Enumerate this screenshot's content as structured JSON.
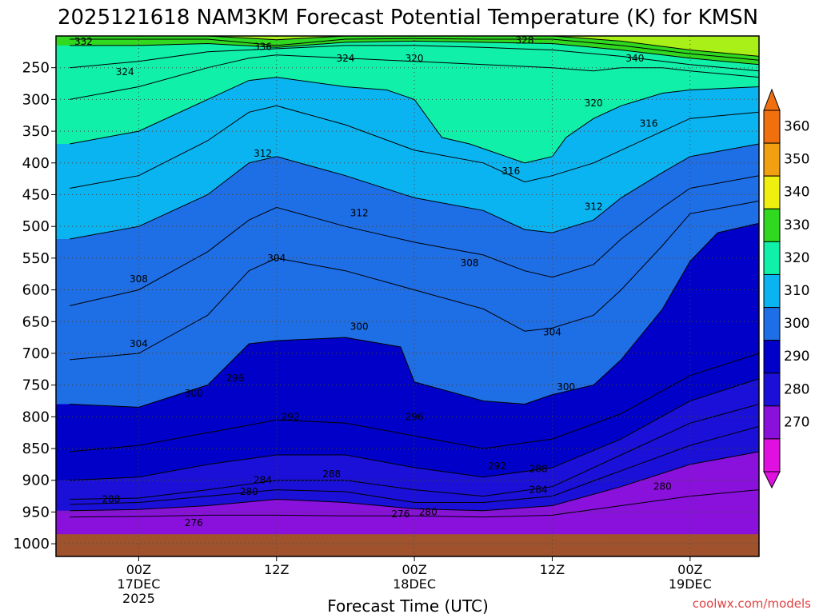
{
  "chart_data": {
    "type": "heatmap",
    "title": "2025121618 NAM3KM Forecast Potential Temperature (K) for KMSN",
    "xlabel": "Forecast Time (UTC)",
    "ylabel": "",
    "y_ticks": [
      250,
      300,
      350,
      400,
      450,
      500,
      550,
      600,
      650,
      700,
      750,
      800,
      850,
      900,
      950,
      1000
    ],
    "ylim": [
      200,
      1020
    ],
    "x_range_hours": [
      -6,
      45
    ],
    "x_ticks": [
      {
        "hour": 0,
        "label": "00Z",
        "label2": "17DEC",
        "label3": "2025"
      },
      {
        "hour": 10,
        "label": "12Z",
        "label2": "",
        "label3": ""
      },
      {
        "hour": 20,
        "label": "00Z",
        "label2": "18DEC",
        "label3": ""
      },
      {
        "hour": 30,
        "label": "12Z",
        "label2": "",
        "label3": ""
      },
      {
        "hour": 40,
        "label": "00Z",
        "label2": "19DEC",
        "label3": ""
      }
    ],
    "colorbar": {
      "levels": [
        270,
        280,
        290,
        300,
        310,
        320,
        330,
        340,
        350,
        360
      ],
      "colors": [
        "#e010e0",
        "#8a10dc",
        "#1a10d8",
        "#0000c8",
        "#1e6ee6",
        "#0ab4f0",
        "#10f0a8",
        "#30d820",
        "#a8f018",
        "#f0f010",
        "#f0a010",
        "#f07010"
      ],
      "labels": [
        "270",
        "280",
        "290",
        "300",
        "310",
        "320",
        "330",
        "340",
        "350",
        "360"
      ]
    },
    "contours": [
      {
        "value": 276,
        "label": "276",
        "points": [
          [
            -5,
            958
          ],
          [
            0,
            957
          ],
          [
            5,
            955
          ],
          [
            10,
            955
          ],
          [
            15,
            956
          ],
          [
            20,
            956
          ],
          [
            25,
            958
          ],
          [
            30,
            955
          ],
          [
            35,
            940
          ],
          [
            40,
            925
          ],
          [
            45,
            915
          ]
        ]
      },
      {
        "value": 280,
        "label": "280",
        "points": [
          [
            -5,
            948
          ],
          [
            0,
            946
          ],
          [
            5,
            940
          ],
          [
            10,
            930
          ],
          [
            15,
            935
          ],
          [
            20,
            945
          ],
          [
            25,
            948
          ],
          [
            30,
            940
          ],
          [
            35,
            910
          ],
          [
            40,
            875
          ],
          [
            45,
            855
          ]
        ]
      },
      {
        "value": 284,
        "label": "284",
        "points": [
          [
            -5,
            938
          ],
          [
            0,
            935
          ],
          [
            5,
            925
          ],
          [
            10,
            915
          ],
          [
            15,
            918
          ],
          [
            20,
            935
          ],
          [
            25,
            935
          ],
          [
            30,
            925
          ],
          [
            35,
            885
          ],
          [
            40,
            845
          ],
          [
            45,
            815
          ]
        ]
      },
      {
        "value": 288,
        "label": "288",
        "points": [
          [
            -5,
            930
          ],
          [
            0,
            928
          ],
          [
            5,
            915
          ],
          [
            10,
            900
          ],
          [
            15,
            900
          ],
          [
            20,
            915
          ],
          [
            25,
            925
          ],
          [
            30,
            910
          ],
          [
            35,
            860
          ],
          [
            40,
            810
          ],
          [
            45,
            780
          ]
        ]
      },
      {
        "value": 292,
        "label": "292",
        "points": [
          [
            -5,
            900
          ],
          [
            0,
            895
          ],
          [
            5,
            875
          ],
          [
            10,
            860
          ],
          [
            15,
            860
          ],
          [
            20,
            880
          ],
          [
            25,
            895
          ],
          [
            30,
            880
          ],
          [
            35,
            835
          ],
          [
            40,
            775
          ],
          [
            45,
            740
          ]
        ]
      },
      {
        "value": 296,
        "label": "296",
        "points": [
          [
            -5,
            855
          ],
          [
            0,
            845
          ],
          [
            5,
            825
          ],
          [
            10,
            805
          ],
          [
            15,
            810
          ],
          [
            20,
            830
          ],
          [
            25,
            850
          ],
          [
            30,
            835
          ],
          [
            35,
            795
          ],
          [
            40,
            735
          ],
          [
            45,
            700
          ]
        ]
      },
      {
        "value": 300,
        "label": "300",
        "points": [
          [
            -5,
            780
          ],
          [
            0,
            785
          ],
          [
            5,
            750
          ],
          [
            8,
            685
          ],
          [
            10,
            680
          ],
          [
            15,
            675
          ],
          [
            19,
            690
          ],
          [
            20,
            745
          ],
          [
            25,
            775
          ],
          [
            28,
            780
          ],
          [
            30,
            765
          ],
          [
            33,
            750
          ],
          [
            35,
            710
          ],
          [
            38,
            630
          ],
          [
            40,
            555
          ],
          [
            42,
            510
          ],
          [
            45,
            495
          ]
        ]
      },
      {
        "value": 304,
        "label": "304",
        "points": [
          [
            -5,
            710
          ],
          [
            0,
            700
          ],
          [
            5,
            640
          ],
          [
            8,
            570
          ],
          [
            10,
            550
          ],
          [
            15,
            570
          ],
          [
            20,
            600
          ],
          [
            25,
            630
          ],
          [
            28,
            665
          ],
          [
            30,
            660
          ],
          [
            33,
            640
          ],
          [
            35,
            600
          ],
          [
            38,
            530
          ],
          [
            40,
            480
          ],
          [
            45,
            460
          ]
        ]
      },
      {
        "value": 308,
        "label": "308",
        "points": [
          [
            -5,
            625
          ],
          [
            0,
            600
          ],
          [
            5,
            540
          ],
          [
            8,
            490
          ],
          [
            10,
            470
          ],
          [
            15,
            500
          ],
          [
            20,
            525
          ],
          [
            25,
            545
          ],
          [
            28,
            570
          ],
          [
            30,
            580
          ],
          [
            33,
            560
          ],
          [
            35,
            520
          ],
          [
            38,
            470
          ],
          [
            40,
            440
          ],
          [
            45,
            420
          ]
        ]
      },
      {
        "value": 312,
        "label": "312",
        "points": [
          [
            -5,
            520
          ],
          [
            0,
            500
          ],
          [
            5,
            450
          ],
          [
            8,
            400
          ],
          [
            10,
            390
          ],
          [
            15,
            420
          ],
          [
            20,
            455
          ],
          [
            25,
            475
          ],
          [
            28,
            505
          ],
          [
            30,
            510
          ],
          [
            33,
            490
          ],
          [
            35,
            455
          ],
          [
            38,
            415
          ],
          [
            40,
            390
          ],
          [
            45,
            370
          ]
        ]
      },
      {
        "value": 316,
        "label": "316",
        "points": [
          [
            -5,
            440
          ],
          [
            0,
            420
          ],
          [
            5,
            365
          ],
          [
            8,
            320
          ],
          [
            10,
            310
          ],
          [
            15,
            340
          ],
          [
            20,
            380
          ],
          [
            25,
            400
          ],
          [
            28,
            430
          ],
          [
            30,
            420
          ],
          [
            33,
            400
          ],
          [
            35,
            380
          ],
          [
            38,
            350
          ],
          [
            40,
            330
          ],
          [
            45,
            320
          ]
        ]
      },
      {
        "value": 320,
        "label": "320",
        "points": [
          [
            -5,
            370
          ],
          [
            0,
            350
          ],
          [
            5,
            300
          ],
          [
            8,
            270
          ],
          [
            10,
            265
          ],
          [
            15,
            280
          ],
          [
            18,
            285
          ],
          [
            20,
            300
          ],
          [
            22,
            360
          ],
          [
            24,
            370
          ],
          [
            26,
            385
          ],
          [
            28,
            400
          ],
          [
            30,
            390
          ],
          [
            31,
            360
          ],
          [
            33,
            330
          ],
          [
            35,
            310
          ],
          [
            38,
            290
          ],
          [
            40,
            285
          ],
          [
            45,
            280
          ]
        ]
      },
      {
        "value": 324,
        "label": "324",
        "points": [
          [
            -5,
            300
          ],
          [
            0,
            280
          ],
          [
            5,
            250
          ],
          [
            8,
            235
          ],
          [
            10,
            230
          ],
          [
            15,
            235
          ],
          [
            20,
            240
          ],
          [
            25,
            245
          ],
          [
            30,
            250
          ],
          [
            33,
            255
          ],
          [
            35,
            250
          ],
          [
            38,
            250
          ],
          [
            40,
            255
          ],
          [
            45,
            265
          ]
        ]
      },
      {
        "value": 328,
        "label": "328",
        "points": [
          [
            -5,
            250
          ],
          [
            0,
            240
          ],
          [
            5,
            225
          ],
          [
            10,
            220
          ],
          [
            15,
            215
          ],
          [
            20,
            215
          ],
          [
            25,
            218
          ],
          [
            30,
            222
          ],
          [
            35,
            232
          ],
          [
            40,
            245
          ],
          [
            45,
            255
          ]
        ]
      },
      {
        "value": 332,
        "label": "332",
        "points": [
          [
            -5,
            215
          ],
          [
            0,
            215
          ],
          [
            5,
            212
          ],
          [
            10,
            218
          ],
          [
            15,
            210
          ],
          [
            20,
            208
          ],
          [
            25,
            210
          ],
          [
            30,
            212
          ],
          [
            35,
            222
          ],
          [
            40,
            235
          ],
          [
            45,
            245
          ]
        ]
      },
      {
        "value": 336,
        "label": "336",
        "points": [
          [
            -5,
            205
          ],
          [
            0,
            205
          ],
          [
            5,
            205
          ],
          [
            10,
            215
          ],
          [
            15,
            205
          ],
          [
            20,
            204
          ],
          [
            25,
            205
          ],
          [
            30,
            205
          ],
          [
            35,
            215
          ],
          [
            40,
            228
          ],
          [
            45,
            238
          ]
        ]
      },
      {
        "value": 340,
        "label": "340",
        "points": [
          [
            -5,
            200
          ],
          [
            0,
            200
          ],
          [
            5,
            200
          ],
          [
            10,
            206
          ],
          [
            15,
            200
          ],
          [
            20,
            200
          ],
          [
            25,
            200
          ],
          [
            30,
            200
          ],
          [
            35,
            208
          ],
          [
            40,
            222
          ],
          [
            45,
            232
          ]
        ]
      }
    ],
    "contour_labels": [
      {
        "text": "332",
        "hour": -4,
        "p": 214
      },
      {
        "text": "336",
        "hour": 9,
        "p": 222
      },
      {
        "text": "328",
        "hour": 28,
        "p": 212
      },
      {
        "text": "324",
        "hour": -1,
        "p": 262
      },
      {
        "text": "324",
        "hour": 15,
        "p": 240
      },
      {
        "text": "320",
        "hour": 20,
        "p": 240
      },
      {
        "text": "340",
        "hour": 36,
        "p": 240
      },
      {
        "text": "320",
        "hour": 33,
        "p": 311
      },
      {
        "text": "316",
        "hour": 37,
        "p": 343
      },
      {
        "text": "312",
        "hour": 9,
        "p": 390
      },
      {
        "text": "316",
        "hour": 27,
        "p": 418
      },
      {
        "text": "312",
        "hour": 16,
        "p": 484
      },
      {
        "text": "312",
        "hour": 33,
        "p": 474
      },
      {
        "text": "308",
        "hour": 0,
        "p": 588
      },
      {
        "text": "304",
        "hour": 10,
        "p": 555
      },
      {
        "text": "308",
        "hour": 24,
        "p": 563
      },
      {
        "text": "304",
        "hour": 0,
        "p": 690
      },
      {
        "text": "300",
        "hour": 16,
        "p": 663
      },
      {
        "text": "304",
        "hour": 30,
        "p": 672
      },
      {
        "text": "300",
        "hour": 4,
        "p": 768
      },
      {
        "text": "296",
        "hour": 7,
        "p": 744
      },
      {
        "text": "292",
        "hour": 11,
        "p": 805
      },
      {
        "text": "296",
        "hour": 20,
        "p": 805
      },
      {
        "text": "300",
        "hour": 31,
        "p": 758
      },
      {
        "text": "288",
        "hour": -2,
        "p": 935
      },
      {
        "text": "280",
        "hour": 8,
        "p": 923
      },
      {
        "text": "284",
        "hour": 9,
        "p": 905
      },
      {
        "text": "288",
        "hour": 14,
        "p": 895
      },
      {
        "text": "292",
        "hour": 26,
        "p": 883
      },
      {
        "text": "288",
        "hour": 29,
        "p": 887
      },
      {
        "text": "284",
        "hour": 29,
        "p": 920
      },
      {
        "text": "280",
        "hour": 38,
        "p": 915
      },
      {
        "text": "276",
        "hour": 4,
        "p": 972
      },
      {
        "text": "276",
        "hour": 19,
        "p": 958
      },
      {
        "text": "280",
        "hour": 21,
        "p": 955
      }
    ]
  },
  "watermark": "coolwx.com/models"
}
